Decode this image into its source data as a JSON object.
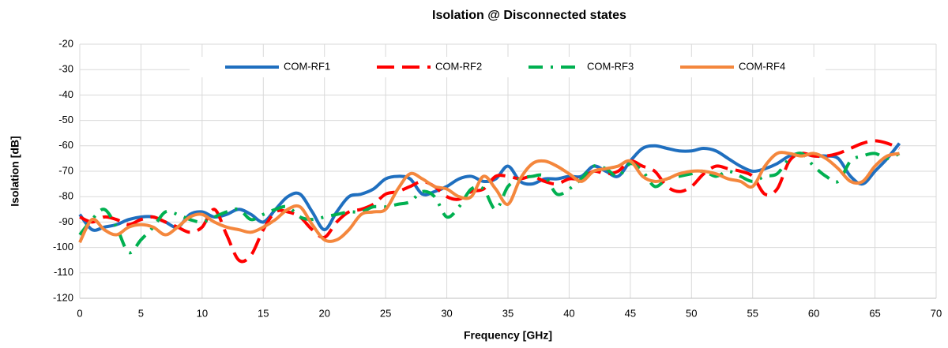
{
  "chart_data": {
    "type": "line",
    "title": "Isolation @ Disconnected states",
    "xlabel": "Frequency [GHz]",
    "ylabel": "Isolation [dB]",
    "x": [
      0,
      1,
      2,
      3,
      4,
      5,
      6,
      7,
      8,
      9,
      10,
      11,
      12,
      13,
      14,
      15,
      16,
      17,
      18,
      19,
      20,
      21,
      22,
      23,
      24,
      25,
      26,
      27,
      28,
      29,
      30,
      31,
      32,
      33,
      34,
      35,
      36,
      37,
      38,
      39,
      40,
      41,
      42,
      43,
      44,
      45,
      46,
      47,
      48,
      49,
      50,
      51,
      52,
      53,
      54,
      55,
      56,
      57,
      58,
      59,
      60,
      61,
      62,
      63,
      64,
      65,
      66,
      67
    ],
    "series": [
      {
        "name": "COM-RF1",
        "color": "#1f6fbf",
        "dash": "solid",
        "values": [
          -87,
          -93,
          -92,
          -91,
          -89,
          -88,
          -88,
          -90,
          -92,
          -87,
          -86,
          -88,
          -87,
          -85,
          -87,
          -90,
          -85,
          -80,
          -79,
          -86,
          -93,
          -86,
          -80,
          -79,
          -77,
          -73,
          -72,
          -73,
          -79,
          -78,
          -76,
          -73,
          -72,
          -74,
          -73,
          -68,
          -74,
          -75,
          -73,
          -73,
          -72,
          -72,
          -68,
          -70,
          -72,
          -66,
          -61,
          -60,
          -61,
          -62,
          -62,
          -61,
          -62,
          -65,
          -68,
          -70,
          -69,
          -67,
          -64,
          -63,
          -64,
          -64,
          -65,
          -72,
          -75,
          -70,
          -65,
          -59
        ]
      },
      {
        "name": "COM-RF2",
        "color": "#ff0000",
        "dash": "dash",
        "values": [
          -88,
          -90,
          -88,
          -89,
          -91,
          -89,
          -88,
          -90,
          -92,
          -94,
          -92,
          -85,
          -95,
          -105,
          -103,
          -93,
          -86,
          -86,
          -88,
          -93,
          -96,
          -90,
          -86,
          -85,
          -83,
          -79,
          -78,
          -76,
          -74,
          -76,
          -80,
          -81,
          -78,
          -77,
          -72,
          -72,
          -73,
          -72,
          -74,
          -75,
          -73,
          -73,
          -70,
          -71,
          -70,
          -66,
          -68,
          -70,
          -76,
          -78,
          -76,
          -71,
          -68,
          -69,
          -70,
          -72,
          -79,
          -77,
          -66,
          -63,
          -64,
          -64,
          -63,
          -61,
          -59,
          -58,
          -59,
          -61
        ]
      },
      {
        "name": "COM-RF3",
        "color": "#00b050",
        "dash": "dashdot",
        "values": [
          -95,
          -89,
          -85,
          -92,
          -102,
          -97,
          -92,
          -86,
          -87,
          -89,
          -90,
          -88,
          -86,
          -85,
          -89,
          -87,
          -85,
          -84,
          -88,
          -89,
          -88,
          -87,
          -86,
          -86,
          -84,
          -84,
          -83,
          -82,
          -78,
          -80,
          -88,
          -84,
          -77,
          -77,
          -85,
          -76,
          -73,
          -72,
          -72,
          -79,
          -77,
          -73,
          -68,
          -69,
          -72,
          -67,
          -70,
          -76,
          -73,
          -72,
          -71,
          -70,
          -72,
          -70,
          -72,
          -74,
          -72,
          -71,
          -65,
          -63,
          -68,
          -72,
          -74,
          -66,
          -64,
          -63,
          -65,
          -63
        ]
      },
      {
        "name": "COM-RF4",
        "color": "#f4873d",
        "dash": "solid",
        "values": [
          -98,
          -89,
          -93,
          -95,
          -92,
          -91,
          -92,
          -95,
          -92,
          -88,
          -87,
          -90,
          -92,
          -93,
          -94,
          -92,
          -89,
          -85,
          -84,
          -91,
          -97,
          -97,
          -93,
          -87,
          -86,
          -85,
          -77,
          -71,
          -73,
          -76,
          -77,
          -80,
          -80,
          -72,
          -77,
          -83,
          -73,
          -67,
          -66,
          -68,
          -71,
          -74,
          -70,
          -69,
          -68,
          -66,
          -72,
          -74,
          -73,
          -71,
          -70,
          -70,
          -71,
          -73,
          -74,
          -76,
          -68,
          -63,
          -63,
          -64,
          -63,
          -65,
          -69,
          -74,
          -74,
          -68,
          -64,
          -63
        ]
      }
    ],
    "xlim": [
      0,
      70
    ],
    "xticks": [
      0,
      5,
      10,
      15,
      20,
      25,
      30,
      35,
      40,
      45,
      50,
      55,
      60,
      65,
      70
    ],
    "ylim": [
      -120,
      -20
    ],
    "yticks": [
      -120,
      -110,
      -100,
      -90,
      -80,
      -70,
      -60,
      -50,
      -40,
      -30,
      -20
    ],
    "grid": true,
    "legend": "top"
  }
}
